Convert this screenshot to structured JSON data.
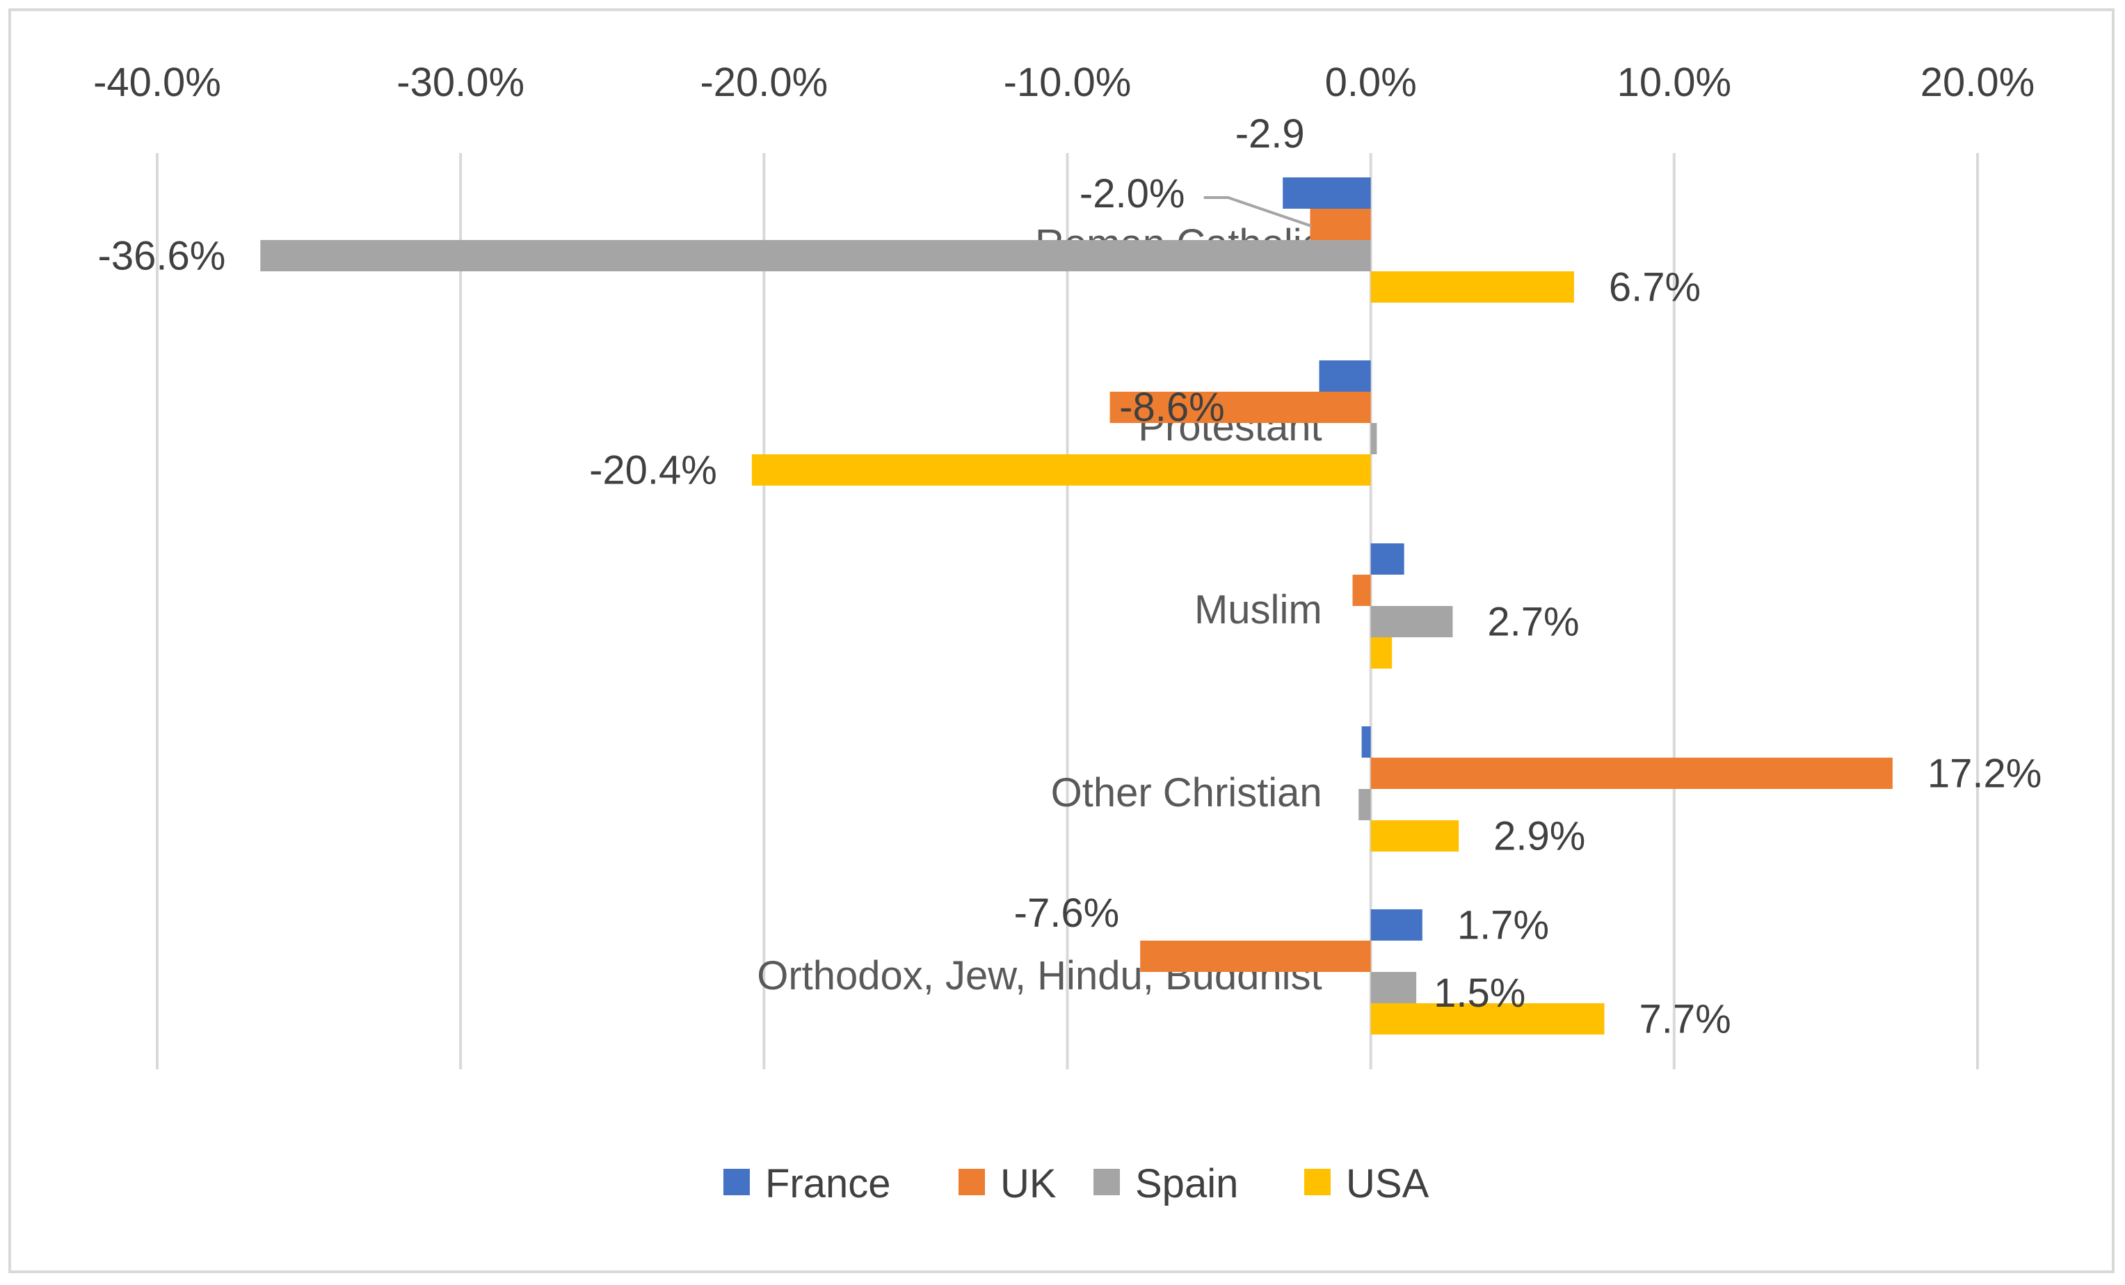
{
  "chart_data": {
    "type": "bar",
    "orientation": "horizontal",
    "title": "",
    "xlabel": "",
    "ylabel": "",
    "xlim": [
      -0.4,
      0.2
    ],
    "xticks": [
      -0.4,
      -0.3,
      -0.2,
      -0.1,
      0.0,
      0.1,
      0.2
    ],
    "xtick_labels": [
      "-40.0%",
      "-30.0%",
      "-20.0%",
      "-10.0%",
      "0.0%",
      "10.0%",
      "20.0%"
    ],
    "grid": true,
    "legend_position": "bottom",
    "categories": [
      "Roman Catholic",
      "Protestant",
      "Muslim",
      "Other Christian",
      "Orthodox, Jew, Hindu, Buddhist"
    ],
    "series": [
      {
        "name": "France",
        "color": "#4472c4",
        "values": [
          -0.029,
          -0.017,
          0.011,
          -0.003,
          0.017
        ],
        "labels": [
          "-2.9",
          "",
          "",
          "",
          "1.7%"
        ]
      },
      {
        "name": "UK",
        "color": "#ed7d31",
        "values": [
          -0.02,
          -0.086,
          -0.006,
          0.172,
          -0.076
        ],
        "labels": [
          "-2.0%",
          "-8.6%",
          "",
          "17.2%",
          "-7.6%"
        ]
      },
      {
        "name": "Spain",
        "color": "#a5a5a5",
        "values": [
          -0.366,
          0.002,
          0.027,
          -0.004,
          0.015
        ],
        "labels": [
          "-36.6%",
          "",
          "2.7%",
          "",
          "1.5%"
        ]
      },
      {
        "name": "USA",
        "color": "#ffc000",
        "values": [
          0.067,
          -0.204,
          0.007,
          0.029,
          0.077
        ],
        "labels": [
          "6.7%",
          "-20.4%",
          "",
          "2.9%",
          "7.7%"
        ]
      }
    ]
  }
}
